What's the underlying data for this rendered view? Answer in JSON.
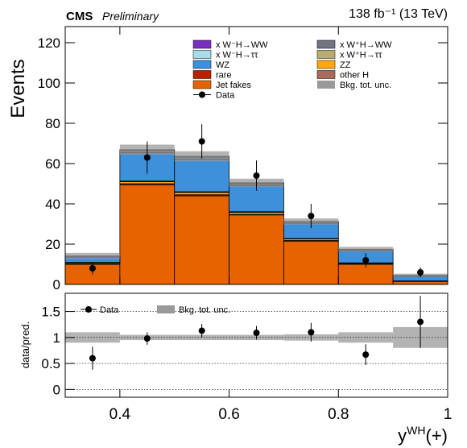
{
  "chart_data": {
    "type": "stacked_histogram",
    "experiment": "CMS",
    "status": "Preliminary",
    "lumi": "138 fb⁻¹ (13 TeV)",
    "ylabel": "Events",
    "x_label": {
      "main": "y",
      "sup": "WH",
      "post": "(+)"
    },
    "bins": [
      0.3,
      0.4,
      0.5,
      0.6,
      0.7,
      0.8,
      0.9,
      1.0
    ],
    "xlim": [
      0.3,
      1.0
    ],
    "xticks": [
      0.4,
      0.6,
      0.8,
      1
    ],
    "ylim": [
      0,
      128
    ],
    "yticks": [
      0,
      20,
      40,
      60,
      80,
      100,
      120
    ],
    "series": [
      {
        "name": "Jet fakes",
        "color": "#e76300",
        "values": [
          10,
          49.5,
          44,
          34.5,
          21.5,
          10,
          1.5
        ]
      },
      {
        "name": "rare",
        "color": "#bd1f01",
        "values": [
          0.3,
          0.5,
          0.5,
          0.3,
          0.3,
          0.2,
          0.1
        ]
      },
      {
        "name": "ZZ",
        "color": "#ffa90e",
        "values": [
          0.5,
          1,
          1.2,
          1,
          0.8,
          0.4,
          0.1
        ]
      },
      {
        "name": "other H",
        "color": "#a96b59",
        "values": [
          0.2,
          0.3,
          0.3,
          0.3,
          0.2,
          0.1,
          0.05
        ]
      },
      {
        "name": "WZ",
        "color": "#3f90da",
        "values": [
          2.5,
          14,
          16,
          13,
          7.5,
          6,
          2.3
        ]
      },
      {
        "name": "x W⁺H→ττ",
        "color": "#b9ac70",
        "values": [
          0.1,
          0.2,
          0.2,
          0.2,
          0.1,
          0.1,
          0.05
        ]
      },
      {
        "name": "x W⁺H→WW",
        "color": "#717581",
        "values": [
          0.4,
          1,
          1,
          0.8,
          0.6,
          0.5,
          0.3
        ]
      },
      {
        "name": "x W⁻H→ττ",
        "color": "#a8dce8",
        "values": [
          0.05,
          0.1,
          0.1,
          0.1,
          0.05,
          0.05,
          0.02
        ]
      },
      {
        "name": "x W⁻H→WW",
        "color": "#7b2fbf",
        "values": [
          0.1,
          0.3,
          0.3,
          0.3,
          0.2,
          0.1,
          0.1
        ]
      }
    ],
    "unc": {
      "name": "Bkg. tot. unc.",
      "color": "#999999",
      "values": [
        1.5,
        2.5,
        2.5,
        2,
        1.5,
        1.2,
        0.8
      ]
    },
    "data": {
      "name": "Data",
      "color": "#000000",
      "values": [
        8,
        63,
        71,
        54,
        34,
        12,
        6
      ],
      "errors": [
        3,
        8,
        8.5,
        7.5,
        6,
        3.5,
        2.5
      ]
    },
    "ratio": {
      "ylabel": "data/pred.",
      "ylim": [
        -0.15,
        1.85
      ],
      "yticks": [
        0,
        0.5,
        1,
        1.5
      ],
      "values": [
        0.6,
        0.98,
        1.13,
        1.09,
        1.1,
        0.67,
        1.3
      ],
      "errors": [
        0.22,
        0.12,
        0.13,
        0.13,
        0.18,
        0.2,
        0.5
      ],
      "unc": [
        0.1,
        0.05,
        0.05,
        0.05,
        0.06,
        0.1,
        0.2
      ]
    }
  }
}
